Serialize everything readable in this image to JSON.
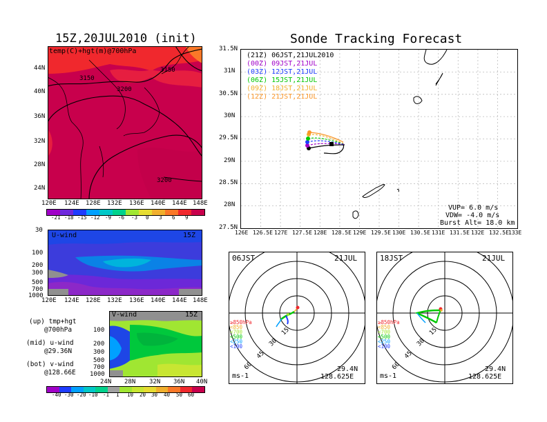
{
  "titles": {
    "left": "15Z,20JUL2010 (init)",
    "right": "Sonde Tracking Forecast"
  },
  "top_map": {
    "label": "temp(C)+hgt(m)@700hPa",
    "lat_ticks": [
      "44N",
      "40N",
      "36N",
      "32N",
      "28N",
      "24N"
    ],
    "lon_ticks": [
      "120E",
      "124E",
      "128E",
      "132E",
      "136E",
      "140E",
      "144E",
      "148E"
    ],
    "contours": [
      "3150",
      "3150",
      "3200",
      "3200"
    ],
    "colorbar": {
      "labels": [
        "-21",
        "-18",
        "-15",
        "-12",
        "-9",
        "-6",
        "-3",
        "0",
        "3",
        "6",
        "9"
      ],
      "colors": [
        "#a000c8",
        "#6e28dc",
        "#1e3cff",
        "#00a0ff",
        "#00c8c8",
        "#00d28c",
        "#a0e632",
        "#e6dc32",
        "#f0af2d",
        "#fa7828",
        "#f0282d",
        "#c8004c"
      ]
    }
  },
  "u_panel": {
    "label": "U-wind",
    "time": "15Z",
    "y_ticks": [
      "30",
      "100",
      "200",
      "300",
      "500",
      "700",
      "1000"
    ],
    "x_ticks": [
      "120E",
      "124E",
      "128E",
      "132E",
      "136E",
      "140E",
      "144E",
      "148E"
    ]
  },
  "v_panel": {
    "label": "V-wind",
    "time": "15Z",
    "y_ticks": [
      "100",
      "200",
      "300",
      "500",
      "700",
      "1000"
    ],
    "x_ticks": [
      "24N",
      "28N",
      "32N",
      "36N",
      "40N"
    ],
    "colorbar": {
      "labels": [
        "-40",
        "-30",
        "-20",
        "-10",
        "-1",
        "1",
        "10",
        "20",
        "30",
        "40",
        "50",
        "60"
      ],
      "colors": [
        "#a000c8",
        "#1e3cff",
        "#00a0ff",
        "#00c8c8",
        "#00d28c",
        "#a0a0a0",
        "#a0e632",
        "#c8e632",
        "#e6dc32",
        "#f0af2d",
        "#fa7828",
        "#f0282d",
        "#c8004c"
      ]
    }
  },
  "legend_text": [
    {
      "a": "(up) tmp+hgt",
      "b": "@700hPa"
    },
    {
      "a": "(mid) u-wind",
      "b": "@29.36N"
    },
    {
      "a": "(bot) v-wind",
      "b": "@128.66E"
    }
  ],
  "track_map": {
    "lat_ticks": [
      "31.5N",
      "31N",
      "30.5N",
      "30N",
      "29.5N",
      "29N",
      "28.5N",
      "28N",
      "27.5N"
    ],
    "lon_ticks": [
      "126E",
      "126.5E",
      "127E",
      "127.5E",
      "128E",
      "128.5E",
      "129E",
      "129.5E",
      "130E",
      "130.5E",
      "131E",
      "131.5E",
      "132E",
      "132.5E",
      "133E"
    ],
    "entries": [
      {
        "text": "(21Z) 06JST,21JUL2010",
        "color": "#000000"
      },
      {
        "text": "(00Z) 09JST,21JUL",
        "color": "#a000c8"
      },
      {
        "text": "(03Z) 12JST,21JUL",
        "color": "#1e3cff"
      },
      {
        "text": "(06Z) 15JST,21JUL",
        "color": "#00c800"
      },
      {
        "text": "(09Z) 18JST,21JUL",
        "color": "#f0af2d"
      },
      {
        "text": "(12Z) 21JST,21JUL",
        "color": "#fa9628"
      }
    ],
    "params": [
      "VUP= 6.0 m/s",
      "VDW= -4.0 m/s",
      "Burst Alt= 18.0 km"
    ]
  },
  "polar_left": {
    "label": "06JST",
    "date": "21JUL",
    "rings": [
      "15",
      "30",
      "45",
      "60"
    ],
    "levels": [
      {
        "text": "≥850hPa",
        "color": "#f0282d"
      },
      {
        "text": "<850",
        "color": "#f0af2d"
      },
      {
        "text": "<700",
        "color": "#a0e632"
      },
      {
        "text": "<500",
        "color": "#00c800"
      },
      {
        "text": "<250",
        "color": "#00a0ff"
      },
      {
        "text": "<100",
        "color": "#1e3cff"
      }
    ],
    "unit": "ms-1",
    "lat": "29.4N",
    "lon": "128.625E"
  },
  "polar_right": {
    "label": "18JST",
    "date": "21JUL",
    "rings": [
      "15",
      "30",
      "45",
      "60"
    ],
    "levels": [
      {
        "text": "≥850hPa",
        "color": "#f0282d"
      },
      {
        "text": "<850",
        "color": "#f0af2d"
      },
      {
        "text": "<700",
        "color": "#a0e632"
      },
      {
        "text": "<500",
        "color": "#00c800"
      },
      {
        "text": "<250",
        "color": "#00a0ff"
      },
      {
        "text": "<100",
        "color": "#1e3cff"
      }
    ],
    "unit": "ms-1",
    "lat": "29.4N",
    "lon": "128.625E"
  }
}
